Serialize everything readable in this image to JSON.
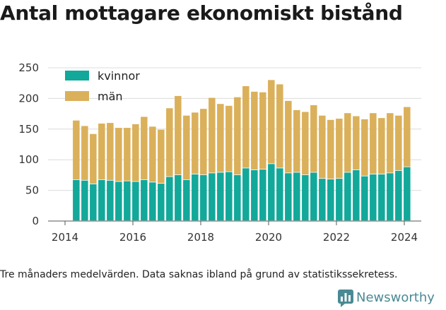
{
  "title": "Antal mottagare ekonomiskt bistånd",
  "footnote": "Tre månaders medelvärden. Data saknas ibland på grund av statistikssekretess.",
  "brand": {
    "name": "Newsworthy",
    "color": "#4a8a94"
  },
  "chart_data": {
    "type": "bar",
    "stacked": true,
    "grid": true,
    "legend_position": "top-left",
    "ylim": [
      0,
      250
    ],
    "yticks": [
      0,
      50,
      100,
      150,
      200,
      250
    ],
    "xlim": [
      2013.5,
      2024.5
    ],
    "xticks": [
      2014,
      2016,
      2018,
      2020,
      2022,
      2024
    ],
    "x": [
      2014.33,
      2014.58,
      2014.83,
      2015.08,
      2015.33,
      2015.58,
      2015.83,
      2016.08,
      2016.33,
      2016.58,
      2016.83,
      2017.08,
      2017.33,
      2017.58,
      2017.83,
      2018.08,
      2018.33,
      2018.58,
      2018.83,
      2019.08,
      2019.33,
      2019.58,
      2019.83,
      2020.08,
      2020.33,
      2020.58,
      2020.83,
      2021.08,
      2021.33,
      2021.58,
      2021.83,
      2022.08,
      2022.33,
      2022.58,
      2022.83,
      2023.08,
      2023.33,
      2023.58,
      2023.83,
      2024.08
    ],
    "series": [
      {
        "name": "kvinnor",
        "color": "#12a89a",
        "values": [
          67,
          66,
          60,
          67,
          66,
          64,
          65,
          64,
          67,
          63,
          61,
          72,
          75,
          67,
          76,
          75,
          78,
          79,
          80,
          75,
          86,
          83,
          84,
          93,
          86,
          78,
          79,
          75,
          79,
          69,
          68,
          69,
          79,
          83,
          73,
          76,
          76,
          78,
          82,
          88
        ]
      },
      {
        "name": "män",
        "color": "#dab05a",
        "values": [
          97,
          89,
          82,
          92,
          94,
          88,
          87,
          94,
          103,
          91,
          88,
          112,
          129,
          105,
          101,
          108,
          123,
          112,
          108,
          127,
          134,
          128,
          126,
          137,
          137,
          118,
          102,
          103,
          110,
          103,
          97,
          98,
          97,
          88,
          93,
          100,
          92,
          98,
          90,
          98
        ]
      }
    ]
  }
}
